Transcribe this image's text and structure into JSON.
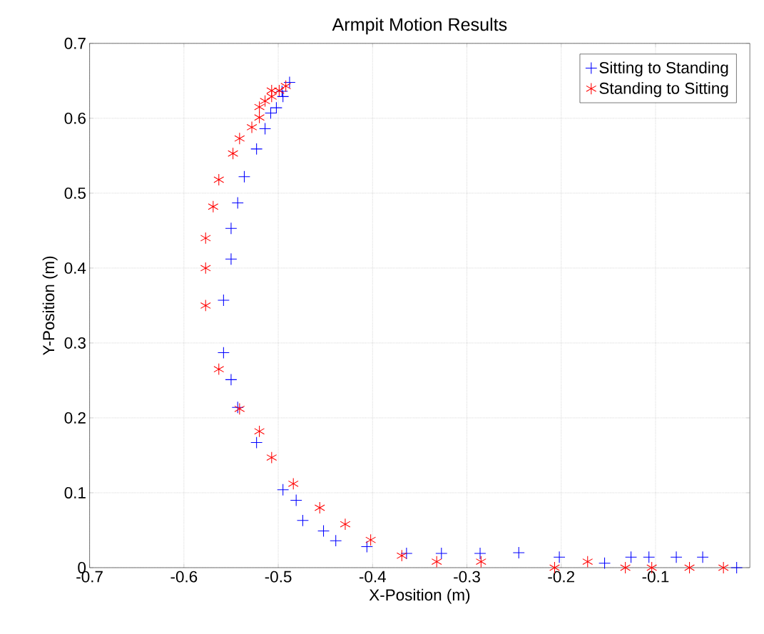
{
  "chart_data": {
    "type": "scatter",
    "title": "Armpit Motion Results",
    "xlabel": "X-Position (m)",
    "ylabel": "Y-Position (m)",
    "xlim": [
      -0.7,
      0
    ],
    "ylim": [
      0,
      0.7
    ],
    "xticks": [
      -0.7,
      -0.6,
      -0.5,
      -0.4,
      -0.3,
      -0.2,
      -0.1
    ],
    "yticks": [
      0,
      0.1,
      0.2,
      0.3,
      0.4,
      0.5,
      0.6,
      0.7
    ],
    "grid": true,
    "legend": "top right",
    "series": [
      {
        "name": "Sitting to Standing",
        "color": "#0000ff",
        "marker": "cross",
        "x": [
          -0.014,
          -0.05,
          -0.078,
          -0.107,
          -0.126,
          -0.154,
          -0.202,
          -0.245,
          -0.286,
          -0.327,
          -0.364,
          -0.406,
          -0.439,
          -0.452,
          -0.474,
          -0.481,
          -0.495,
          -0.523,
          -0.543,
          -0.55,
          -0.558,
          -0.558,
          -0.55,
          -0.55,
          -0.543,
          -0.536,
          -0.523,
          -0.514,
          -0.508,
          -0.502,
          -0.495,
          -0.496,
          -0.488
        ],
        "values": [
          0.0,
          0.014,
          0.014,
          0.014,
          0.014,
          0.006,
          0.014,
          0.02,
          0.019,
          0.019,
          0.019,
          0.028,
          0.036,
          0.049,
          0.063,
          0.09,
          0.104,
          0.167,
          0.214,
          0.251,
          0.287,
          0.357,
          0.412,
          0.453,
          0.487,
          0.522,
          0.559,
          0.586,
          0.607,
          0.614,
          0.629,
          0.636,
          0.648
        ]
      },
      {
        "name": "Standing to Sitting",
        "color": "#ff0000",
        "x": [
          -0.028,
          -0.064,
          -0.104,
          -0.132,
          -0.172,
          -0.207,
          -0.285,
          -0.332,
          -0.369,
          -0.402,
          -0.429,
          -0.456,
          -0.484,
          -0.507,
          -0.52,
          -0.541,
          -0.563,
          -0.577,
          -0.577,
          -0.577,
          -0.569,
          -0.563,
          -0.548,
          -0.541,
          -0.528,
          -0.52,
          -0.52,
          -0.514,
          -0.507,
          -0.507,
          -0.499,
          -0.492
        ],
        "values": [
          0.0,
          0.0,
          0.0,
          0.0,
          0.008,
          0.0,
          0.008,
          0.008,
          0.016,
          0.037,
          0.058,
          0.08,
          0.112,
          0.147,
          0.182,
          0.212,
          0.265,
          0.35,
          0.4,
          0.44,
          0.482,
          0.518,
          0.553,
          0.573,
          0.588,
          0.601,
          0.615,
          0.623,
          0.629,
          0.637,
          0.637,
          0.643
        ]
      }
    ]
  }
}
